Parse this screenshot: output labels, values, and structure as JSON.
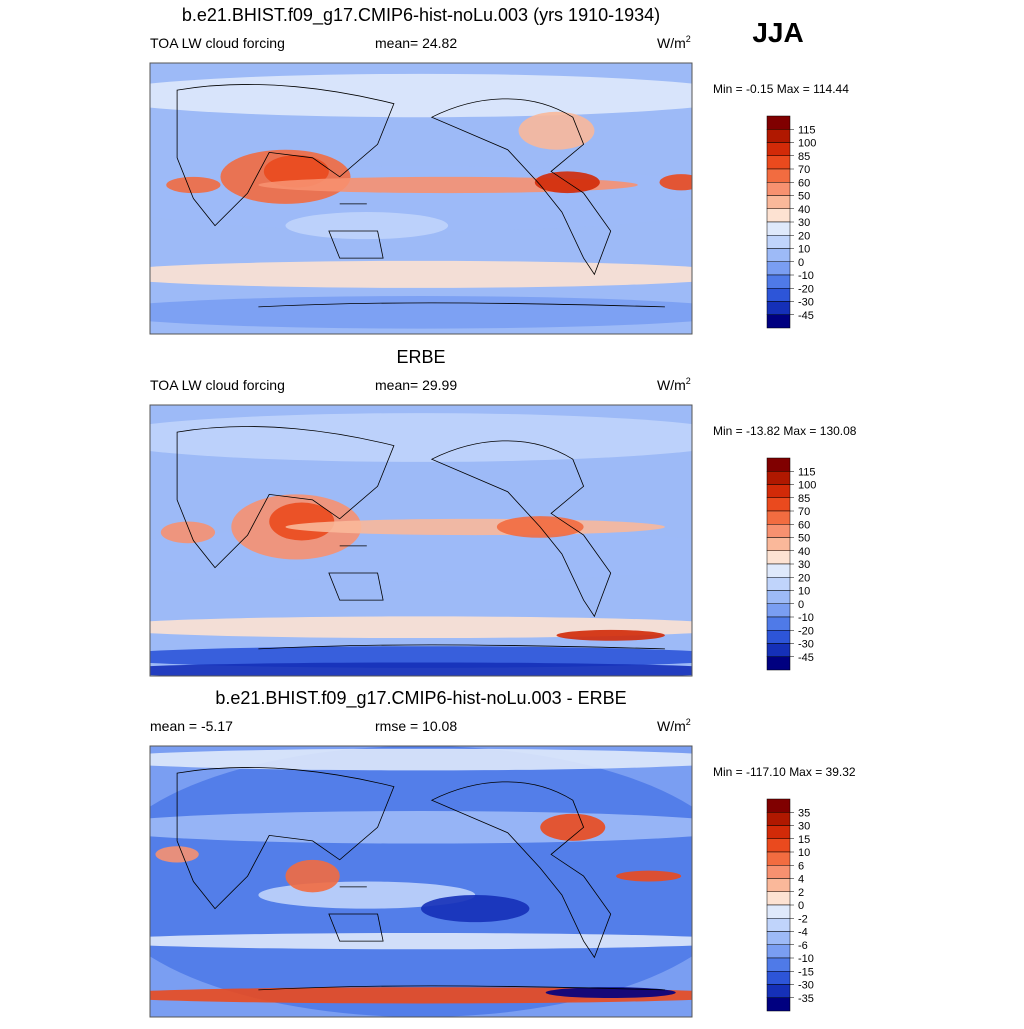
{
  "season": "JJA",
  "panels": [
    {
      "title": "b.e21.BHIST.f09_g17.CMIP6-hist-noLu.003 (yrs 1910-1934)",
      "stats": [
        {
          "label": "TOA LW cloud forcing"
        },
        {
          "label": "mean=",
          "value": 24.82
        }
      ],
      "units": "W/m",
      "units_sup": "2",
      "min_label": "Min =",
      "min": -0.15,
      "max_label": "Max =",
      "max": 114.44,
      "colorbar": {
        "levels": [
          115,
          100,
          85,
          70,
          60,
          50,
          40,
          30,
          20,
          10,
          0,
          -10,
          -20,
          -30,
          -45
        ],
        "colors": [
          "#800000",
          "#b01800",
          "#d22a08",
          "#ea4a1e",
          "#f26c40",
          "#f79170",
          "#fab89a",
          "#fde2d2",
          "#dfe9fb",
          "#c0d4fb",
          "#9dbaf7",
          "#7a9ef2",
          "#4f7ae8",
          "#2d55d8",
          "#1530b8",
          "#000080"
        ]
      }
    },
    {
      "title": "ERBE",
      "stats": [
        {
          "label": "TOA LW cloud forcing"
        },
        {
          "label": "mean=",
          "value": 29.99
        }
      ],
      "units": "W/m",
      "units_sup": "2",
      "min_label": "Min =",
      "min": -13.82,
      "max_label": "Max =",
      "max": 130.08,
      "colorbar": {
        "levels": [
          115,
          100,
          85,
          70,
          60,
          50,
          40,
          30,
          20,
          10,
          0,
          -10,
          -20,
          -30,
          -45
        ],
        "colors": [
          "#800000",
          "#b01800",
          "#d22a08",
          "#ea4a1e",
          "#f26c40",
          "#f79170",
          "#fab89a",
          "#fde2d2",
          "#dfe9fb",
          "#c0d4fb",
          "#9dbaf7",
          "#7a9ef2",
          "#4f7ae8",
          "#2d55d8",
          "#1530b8",
          "#000080"
        ]
      }
    },
    {
      "title": "b.e21.BHIST.f09_g17.CMIP6-hist-noLu.003 - ERBE",
      "stats": [
        {
          "label": "mean =",
          "value": -5.17
        },
        {
          "label": "rmse =",
          "value": 10.08
        }
      ],
      "units": "W/m",
      "units_sup": "2",
      "min_label": "Min =",
      "min": {
        "value": -117.1,
        "label": "-117.10"
      },
      "max_label": "Max =",
      "max": 39.32,
      "colorbar": {
        "levels": [
          35,
          30,
          15,
          10,
          6,
          4,
          2,
          0,
          -2,
          -4,
          -6,
          -10,
          -15,
          -30,
          -35
        ],
        "colors": [
          "#800000",
          "#b01800",
          "#d22a08",
          "#ea4a1e",
          "#f26c40",
          "#f79170",
          "#fab89a",
          "#fde2d2",
          "#dfe9fb",
          "#c0d4fb",
          "#9dbaf7",
          "#7a9ef2",
          "#4f7ae8",
          "#2d55d8",
          "#1530b8",
          "#000080"
        ]
      }
    }
  ]
}
